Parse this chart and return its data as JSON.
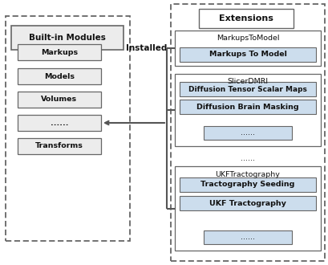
{
  "bg_color": "#ffffff",
  "builtin_label": "Built-in Modules",
  "builtin_items": [
    "Markups",
    "Models",
    "Volumes",
    "......",
    "Transforms"
  ],
  "extensions_label": "Extensions",
  "installed_label": "Installed",
  "ext1_title": "MarkupsToModel",
  "ext1_items": [
    "Markups To Model"
  ],
  "ext2_title": "SlicerDMRI",
  "ext2_items": [
    "Diffusion Tensor Scalar Maps",
    "Diffusion Brain Masking",
    "......"
  ],
  "ext_mid_dots": "......",
  "ext3_title": "UKFTractography",
  "ext3_items": [
    "Tractography Seeding",
    "UKF Tractography",
    "......"
  ],
  "dash_color": "#666666",
  "box_edge_color": "#666666",
  "inner_box_fill_builtin": "#ececec",
  "inner_box_fill_ext": "#ccdded",
  "outer_box_fill": "#ffffff",
  "arrow_color": "#555555",
  "text_color": "#111111",
  "font_size_title": 7.5,
  "font_size_item": 6.8,
  "font_size_label": 7.5
}
